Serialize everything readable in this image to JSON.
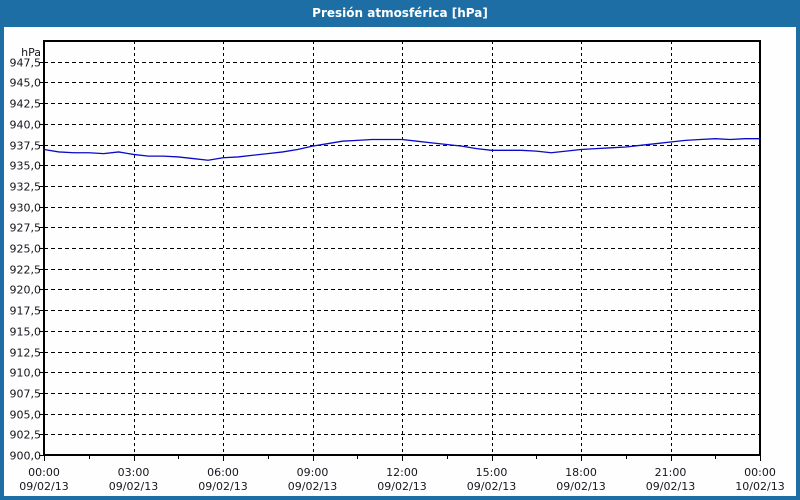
{
  "title": "Presión atmosférica [hPa]",
  "colors": {
    "titlebar_bg": "#1d6ea5",
    "title_text": "#ffffff",
    "window_border": "#1d6ea5",
    "content_bg": "#fdfefd",
    "plot_bg": "#fdfefd",
    "grid": "#000000",
    "axis_border": "#000000",
    "label_text": "#16161f",
    "line": "#0a0ac8"
  },
  "chart_data": {
    "type": "line",
    "title": "Presión atmosférica [hPa]",
    "y_axis": {
      "unit_label": "hPa",
      "tick_labels": [
        "947,5",
        "945,0",
        "942,5",
        "940,0",
        "937,5",
        "935,0",
        "932,5",
        "930,0",
        "927,5",
        "925,0",
        "922,5",
        "920,0",
        "917,5",
        "915,0",
        "912,5",
        "910,0",
        "907,5",
        "905,0",
        "902,5",
        "900,0"
      ],
      "tick_values": [
        947.5,
        945.0,
        942.5,
        940.0,
        937.5,
        935.0,
        932.5,
        930.0,
        927.5,
        925.0,
        922.5,
        920.0,
        917.5,
        915.0,
        912.5,
        910.0,
        907.5,
        905.0,
        902.5,
        900.0
      ],
      "ylim": [
        900.0,
        950.0
      ],
      "grid": "dashed"
    },
    "x_axis": {
      "xlim_hours": [
        0,
        24
      ],
      "major_tick_hours": [
        0,
        3,
        6,
        9,
        12,
        15,
        18,
        21,
        24
      ],
      "minor_tick_hours": [
        1.5,
        4.5,
        7.5,
        10.5,
        13.5,
        16.5,
        19.5,
        22.5
      ],
      "ticks": [
        {
          "hour": 0,
          "time": "00:00",
          "date": "09/02/13"
        },
        {
          "hour": 3,
          "time": "03:00",
          "date": "09/02/13"
        },
        {
          "hour": 6,
          "time": "06:00",
          "date": "09/02/13"
        },
        {
          "hour": 9,
          "time": "09:00",
          "date": "09/02/13"
        },
        {
          "hour": 12,
          "time": "12:00",
          "date": "09/02/13"
        },
        {
          "hour": 15,
          "time": "15:00",
          "date": "09/02/13"
        },
        {
          "hour": 18,
          "time": "18:00",
          "date": "09/02/13"
        },
        {
          "hour": 21,
          "time": "21:00",
          "date": "09/02/13"
        },
        {
          "hour": 24,
          "time": "00:00",
          "date": "10/02/13"
        }
      ],
      "grid": "dashed"
    },
    "series": [
      {
        "name": "Presión atmosférica",
        "color": "#0a0ac8",
        "x_hours": [
          0,
          0.5,
          1,
          1.5,
          2,
          2.5,
          3,
          3.5,
          4,
          4.5,
          5,
          5.5,
          6,
          6.5,
          7,
          7.5,
          8,
          8.5,
          9,
          9.5,
          10,
          10.5,
          11,
          11.5,
          12,
          12.5,
          13,
          13.5,
          14,
          14.5,
          15,
          15.5,
          16,
          16.5,
          17,
          17.5,
          18,
          18.5,
          19,
          19.5,
          20,
          20.5,
          21,
          21.5,
          22,
          22.5,
          23,
          23.5,
          24
        ],
        "values": [
          936.9,
          936.6,
          936.5,
          936.5,
          936.4,
          936.6,
          936.3,
          936.1,
          936.1,
          936.0,
          935.8,
          935.6,
          935.9,
          936.0,
          936.2,
          936.4,
          936.6,
          936.9,
          937.3,
          937.6,
          937.9,
          938.0,
          938.1,
          938.1,
          938.1,
          937.9,
          937.7,
          937.5,
          937.3,
          937.0,
          936.8,
          936.8,
          936.8,
          936.7,
          936.5,
          936.7,
          936.9,
          937.0,
          937.1,
          937.2,
          937.4,
          937.6,
          937.8,
          938.0,
          938.1,
          938.2,
          938.1,
          938.2,
          938.2
        ]
      }
    ]
  }
}
